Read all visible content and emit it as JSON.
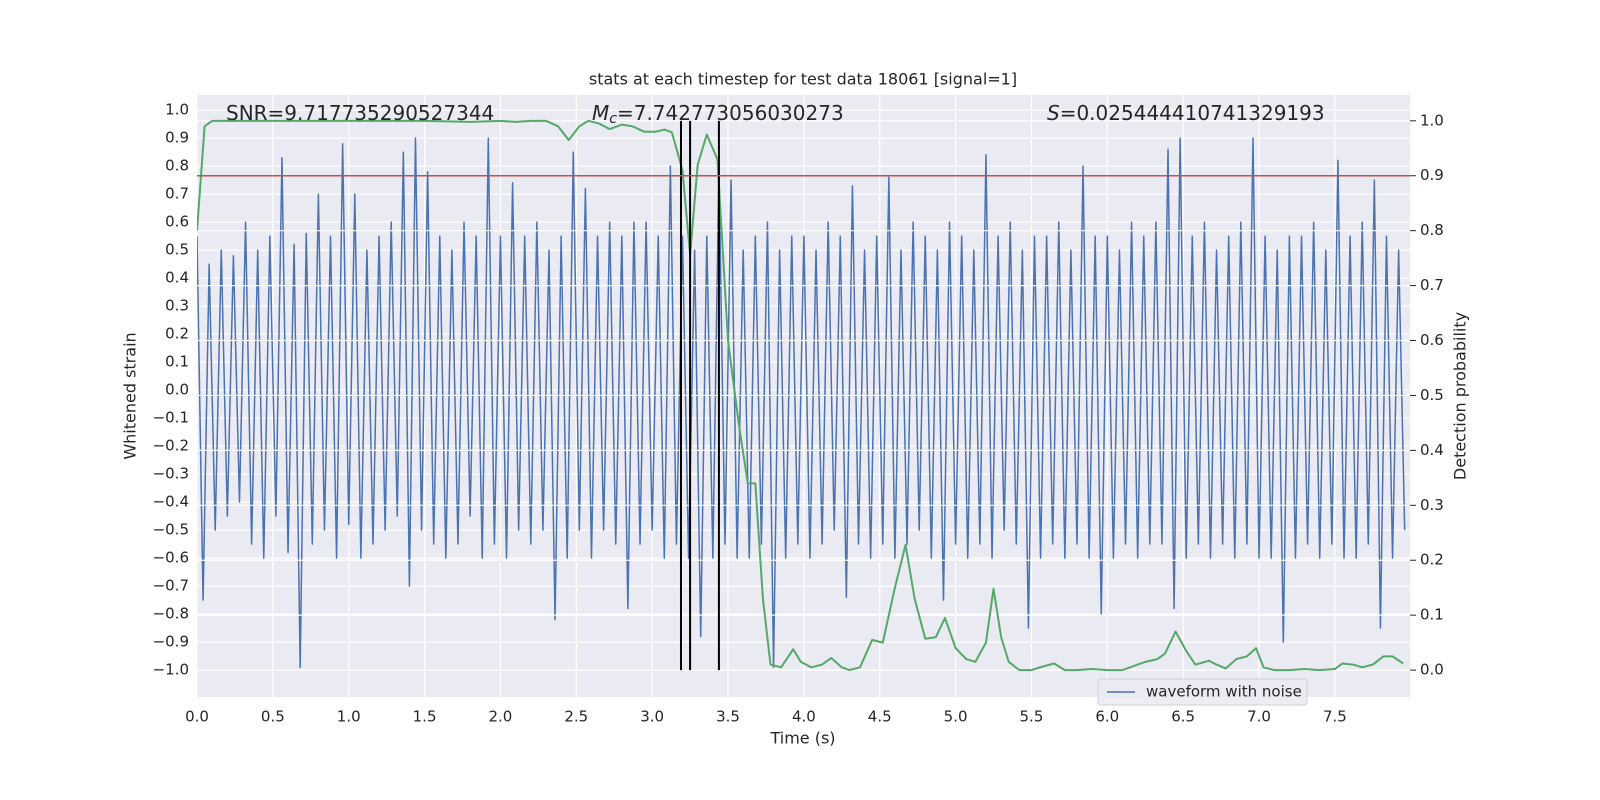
{
  "chart_data": {
    "type": "line",
    "title": "stats at each timestep for test data 18061 [signal=1]",
    "xlabel": "Time (s)",
    "ylabel": "Whitened strain",
    "y2label": "Detection probability",
    "xlim": [
      0,
      7.995
    ],
    "ylim": [
      -1.096,
      1.054
    ],
    "y2lim": [
      -0.049,
      1.047
    ],
    "grid": true,
    "legend_loc": "lower right",
    "xticks": [
      {
        "value": 0,
        "label": "0.0"
      },
      {
        "value": 0.5,
        "label": "0.5"
      },
      {
        "value": 1,
        "label": "1.0"
      },
      {
        "value": 1.5,
        "label": "1.5"
      },
      {
        "value": 2,
        "label": "2.0"
      },
      {
        "value": 2.5,
        "label": "2.5"
      },
      {
        "value": 3,
        "label": "3.0"
      },
      {
        "value": 3.5,
        "label": "3.5"
      },
      {
        "value": 4,
        "label": "4.0"
      },
      {
        "value": 4.5,
        "label": "4.5"
      },
      {
        "value": 5,
        "label": "5.0"
      },
      {
        "value": 5.5,
        "label": "5.5"
      },
      {
        "value": 6,
        "label": "6.0"
      },
      {
        "value": 6.5,
        "label": "6.5"
      },
      {
        "value": 7,
        "label": "7.0"
      },
      {
        "value": 7.5,
        "label": "7.5"
      }
    ],
    "yticks": [
      {
        "value": -1,
        "label": "−1.0"
      },
      {
        "value": -0.9,
        "label": "−0.9"
      },
      {
        "value": -0.8,
        "label": "−0.8"
      },
      {
        "value": -0.7,
        "label": "−0.7"
      },
      {
        "value": -0.6,
        "label": "−0.6"
      },
      {
        "value": -0.5,
        "label": "−0.5"
      },
      {
        "value": -0.4,
        "label": "−0.4"
      },
      {
        "value": -0.3,
        "label": "−0.3"
      },
      {
        "value": -0.2,
        "label": "−0.2"
      },
      {
        "value": -0.1,
        "label": "−0.1"
      },
      {
        "value": 0,
        "label": "0.0"
      },
      {
        "value": 0.1,
        "label": "0.1"
      },
      {
        "value": 0.2,
        "label": "0.2"
      },
      {
        "value": 0.3,
        "label": "0.3"
      },
      {
        "value": 0.4,
        "label": "0.4"
      },
      {
        "value": 0.5,
        "label": "0.5"
      },
      {
        "value": 0.6,
        "label": "0.6"
      },
      {
        "value": 0.7,
        "label": "0.7"
      },
      {
        "value": 0.8,
        "label": "0.8"
      },
      {
        "value": 0.9,
        "label": "0.9"
      },
      {
        "value": 1,
        "label": "1.0"
      }
    ],
    "y2ticks": [
      {
        "value": 0,
        "label": "0.0"
      },
      {
        "value": 0.1,
        "label": "0.1"
      },
      {
        "value": 0.2,
        "label": "0.2"
      },
      {
        "value": 0.3,
        "label": "0.3"
      },
      {
        "value": 0.4,
        "label": "0.4"
      },
      {
        "value": 0.5,
        "label": "0.5"
      },
      {
        "value": 0.6,
        "label": "0.6"
      },
      {
        "value": 0.7,
        "label": "0.7"
      },
      {
        "value": 0.8,
        "label": "0.8"
      },
      {
        "value": 0.9,
        "label": "0.9"
      },
      {
        "value": 1,
        "label": "1.0"
      }
    ],
    "series": [
      {
        "name": "waveform with noise",
        "color": "#4c72b0",
        "x": [
          0,
          0.04,
          0.08,
          0.12,
          0.16,
          0.2,
          0.24,
          0.28,
          0.32,
          0.36,
          0.4,
          0.44,
          0.48,
          0.52,
          0.56,
          0.6,
          0.64,
          0.68,
          0.72,
          0.76,
          0.8,
          0.84,
          0.88,
          0.92,
          0.96,
          1,
          1.04,
          1.08,
          1.12,
          1.16,
          1.2,
          1.24,
          1.28,
          1.32,
          1.36,
          1.4,
          1.44,
          1.48,
          1.52,
          1.56,
          1.6,
          1.64,
          1.68,
          1.72,
          1.76,
          1.8,
          1.84,
          1.88,
          1.92,
          1.96,
          2,
          2.04,
          2.08,
          2.12,
          2.16,
          2.2,
          2.24,
          2.28,
          2.32,
          2.36,
          2.4,
          2.44,
          2.48,
          2.52,
          2.56,
          2.6,
          2.64,
          2.68,
          2.72,
          2.76,
          2.8,
          2.84,
          2.88,
          2.92,
          2.96,
          3,
          3.04,
          3.08,
          3.12,
          3.16,
          3.2,
          3.24,
          3.28,
          3.32,
          3.36,
          3.4,
          3.44,
          3.48,
          3.52,
          3.56,
          3.6,
          3.64,
          3.68,
          3.72,
          3.76,
          3.8,
          3.84,
          3.88,
          3.92,
          3.96,
          4,
          4.04,
          4.08,
          4.12,
          4.16,
          4.2,
          4.24,
          4.28,
          4.32,
          4.36,
          4.4,
          4.44,
          4.48,
          4.52,
          4.56,
          4.6,
          4.64,
          4.68,
          4.72,
          4.76,
          4.8,
          4.84,
          4.88,
          4.92,
          4.96,
          5,
          5.04,
          5.08,
          5.12,
          5.16,
          5.2,
          5.24,
          5.28,
          5.32,
          5.36,
          5.4,
          5.44,
          5.48,
          5.52,
          5.56,
          5.6,
          5.64,
          5.68,
          5.72,
          5.76,
          5.8,
          5.84,
          5.88,
          5.92,
          5.96,
          6,
          6.04,
          6.08,
          6.12,
          6.16,
          6.2,
          6.24,
          6.28,
          6.32,
          6.36,
          6.4,
          6.44,
          6.48,
          6.52,
          6.56,
          6.6,
          6.64,
          6.68,
          6.72,
          6.76,
          6.8,
          6.84,
          6.88,
          6.92,
          6.96,
          7,
          7.04,
          7.08,
          7.12,
          7.16,
          7.2,
          7.24,
          7.28,
          7.32,
          7.36,
          7.4,
          7.44,
          7.48,
          7.52,
          7.56,
          7.6,
          7.64,
          7.68,
          7.72,
          7.76,
          7.8,
          7.84,
          7.88,
          7.92,
          7.96
        ],
        "values": [
          0.55,
          -0.75,
          0.45,
          -0.5,
          0.5,
          -0.45,
          0.48,
          -0.4,
          0.6,
          -0.55,
          0.5,
          -0.6,
          0.55,
          -0.45,
          0.83,
          -0.58,
          0.52,
          -0.99,
          0.56,
          -0.55,
          0.7,
          -0.5,
          0.55,
          -0.6,
          0.88,
          -0.48,
          0.7,
          -0.6,
          0.5,
          -0.55,
          0.55,
          -0.5,
          0.6,
          -0.45,
          0.85,
          -0.7,
          0.9,
          -0.5,
          0.78,
          -0.55,
          0.55,
          -0.6,
          0.5,
          -0.55,
          0.6,
          -0.45,
          0.55,
          -0.6,
          0.9,
          -0.55,
          0.55,
          -0.6,
          0.74,
          -0.5,
          0.55,
          -0.55,
          0.6,
          -0.5,
          0.5,
          -0.82,
          0.55,
          -0.6,
          0.85,
          -0.5,
          0.72,
          -0.6,
          0.55,
          -0.5,
          0.6,
          -0.55,
          0.55,
          -0.78,
          0.6,
          -0.55,
          0.6,
          -0.5,
          0.55,
          -0.6,
          0.8,
          -0.55,
          0.55,
          -0.6,
          0.5,
          -0.88,
          0.55,
          -0.6,
          0.8,
          -0.55,
          0.75,
          -0.6,
          0.5,
          -0.6,
          0.55,
          -0.55,
          0.6,
          -0.99,
          0.5,
          -0.6,
          0.55,
          -0.55,
          0.55,
          -0.6,
          0.5,
          -0.55,
          0.6,
          -0.5,
          0.55,
          -0.74,
          0.73,
          -0.55,
          0.5,
          -0.6,
          0.55,
          -0.55,
          0.76,
          -0.6,
          0.5,
          -0.55,
          0.6,
          -0.5,
          0.55,
          -0.6,
          0.5,
          -0.75,
          0.6,
          -0.55,
          0.55,
          -0.6,
          0.5,
          -0.55,
          0.84,
          -0.6,
          0.55,
          -0.5,
          0.6,
          -0.55,
          0.5,
          -0.85,
          0.55,
          -0.6,
          0.55,
          -0.55,
          0.6,
          -0.6,
          0.5,
          -0.55,
          0.8,
          -0.6,
          0.55,
          -0.8,
          0.55,
          -0.6,
          0.5,
          -0.55,
          0.6,
          -0.6,
          0.55,
          -0.55,
          0.6,
          -0.55,
          0.86,
          -0.78,
          0.9,
          -0.6,
          0.55,
          -0.55,
          0.6,
          -0.6,
          0.5,
          -0.55,
          0.55,
          -0.6,
          0.6,
          -0.55,
          0.9,
          -0.6,
          0.55,
          -0.6,
          0.5,
          -0.9,
          0.55,
          -0.6,
          0.55,
          -0.55,
          0.6,
          -0.6,
          0.5,
          -0.55,
          0.82,
          -0.6,
          0.55,
          -0.6,
          0.6,
          -0.55,
          0.75,
          -0.85,
          0.55,
          -0.6,
          0.5,
          -0.5
        ]
      },
      {
        "color": "#55a868",
        "axis": "y2",
        "x": [
          0,
          0.05,
          0.1,
          0.2,
          0.5,
          1,
          1.5,
          1.8,
          2,
          2.1,
          2.2,
          2.3,
          2.38,
          2.45,
          2.52,
          2.58,
          2.65,
          2.72,
          2.8,
          2.87,
          2.95,
          3.02,
          3.08,
          3.13,
          3.2,
          3.25,
          3.3,
          3.36,
          3.43,
          3.5,
          3.57,
          3.63,
          3.68,
          3.73,
          3.78,
          3.85,
          3.93,
          3.98,
          4.05,
          4.12,
          4.18,
          4.25,
          4.3,
          4.37,
          4.45,
          4.52,
          4.6,
          4.67,
          4.73,
          4.8,
          4.87,
          4.93,
          5,
          5.07,
          5.13,
          5.2,
          5.25,
          5.3,
          5.35,
          5.42,
          5.5,
          5.58,
          5.65,
          5.72,
          5.8,
          5.9,
          6,
          6.1,
          6.15,
          6.25,
          6.33,
          6.38,
          6.45,
          6.52,
          6.58,
          6.67,
          6.72,
          6.78,
          6.85,
          6.92,
          6.98,
          7.03,
          7.1,
          7.2,
          7.3,
          7.4,
          7.5,
          7.55,
          7.62,
          7.68,
          7.75,
          7.82,
          7.88,
          7.95
        ],
        "values": [
          0.8,
          0.99,
          1,
          1,
          1,
          1,
          1,
          0.998,
          1,
          0.998,
          1,
          1,
          0.99,
          0.965,
          0.99,
          1,
          0.995,
          0.985,
          0.993,
          0.99,
          0.98,
          0.98,
          0.984,
          0.979,
          0.91,
          0.756,
          0.92,
          0.975,
          0.93,
          0.6,
          0.45,
          0.34,
          0.34,
          0.13,
          0.01,
          0.005,
          0.038,
          0.015,
          0.005,
          0.01,
          0.022,
          0.005,
          0,
          0.005,
          0.055,
          0.05,
          0.15,
          0.228,
          0.13,
          0.057,
          0.06,
          0.095,
          0.04,
          0.02,
          0.015,
          0.05,
          0.148,
          0.06,
          0.015,
          0,
          0,
          0.007,
          0.012,
          0,
          0,
          0.002,
          0,
          0,
          0.005,
          0.015,
          0.02,
          0.03,
          0.07,
          0.035,
          0.01,
          0.017,
          0.01,
          0.003,
          0.02,
          0.025,
          0.04,
          0.005,
          0,
          0,
          0.002,
          0,
          0.002,
          0.012,
          0.01,
          0.005,
          0.01,
          0.025,
          0.025,
          0.012
        ]
      }
    ],
    "threshold": {
      "y2": 0.9,
      "color": "#c44e52"
    },
    "vlines": {
      "x": [
        3.19,
        3.25,
        3.44
      ],
      "y2": [
        0,
        1
      ],
      "color": "#000000"
    },
    "annotations": [
      {
        "text": "SNR=9.717735290527344"
      },
      {
        "symbol": "M",
        "subscript": "c",
        "text": "=7.742773056030273"
      },
      {
        "symbol": "S",
        "text": "=0.025444410741329193"
      }
    ]
  }
}
